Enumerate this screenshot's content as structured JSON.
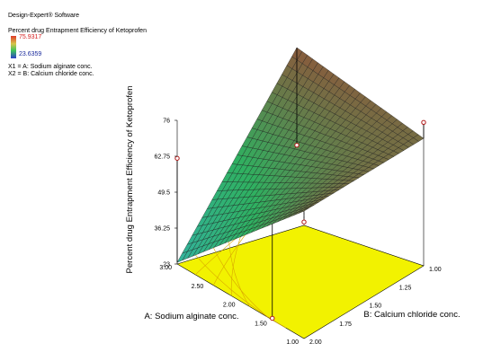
{
  "software": "Design-Expert® Software",
  "response_title": "Percent drug Entrapment Efficiency of Ketoprofen",
  "legend_max": "75.9317",
  "legend_min": "23.6359",
  "factor_x1": "X1 = A: Sodium alginate conc.",
  "factor_x2": "X2 = B: Calcium chloride conc.",
  "colors": {
    "legend_max_text": "#d62020",
    "legend_min_text": "#1a2a9c",
    "floor": "#f2f200",
    "floor_contour": "#d9a800",
    "design_point": "#b01818",
    "high_surface": "#8a5a3c",
    "mid_surface": "#2fb060",
    "low_surface": "#33b3a0"
  },
  "chart_data": {
    "type": "surface3d",
    "title": "",
    "xlabel": "A: Sodium alginate conc.",
    "ylabel": "B: Calcium chloride conc.",
    "zlabel": "Percent drug Entrapment Efficiency of Ketoprofen",
    "x_ticks": [
      "1.00",
      "1.50",
      "2.00",
      "2.50",
      "3.00"
    ],
    "y_ticks": [
      "1.00",
      "1.25",
      "1.50",
      "1.75",
      "2.00"
    ],
    "z_ticks": [
      "23",
      "36.25",
      "49.5",
      "62.75",
      "76"
    ],
    "xlim": [
      1,
      3
    ],
    "ylim": [
      1,
      2
    ],
    "zlim": [
      23,
      76
    ],
    "corner_values": [
      {
        "A": 1,
        "B": 1,
        "z": 70
      },
      {
        "A": 3,
        "B": 1,
        "z": 76
      },
      {
        "A": 1,
        "B": 2,
        "z": 70
      },
      {
        "A": 3,
        "B": 2,
        "z": 23.6
      }
    ],
    "design_points": [
      {
        "A": 1,
        "B": 1,
        "z": 75.9
      },
      {
        "A": 1,
        "B": 2,
        "z": 66
      },
      {
        "A": 3,
        "B": 2,
        "z": 62
      },
      {
        "A": 3,
        "B": 1,
        "z": 40
      },
      {
        "A": 1.5,
        "B": 2,
        "z": 23.6
      }
    ]
  }
}
